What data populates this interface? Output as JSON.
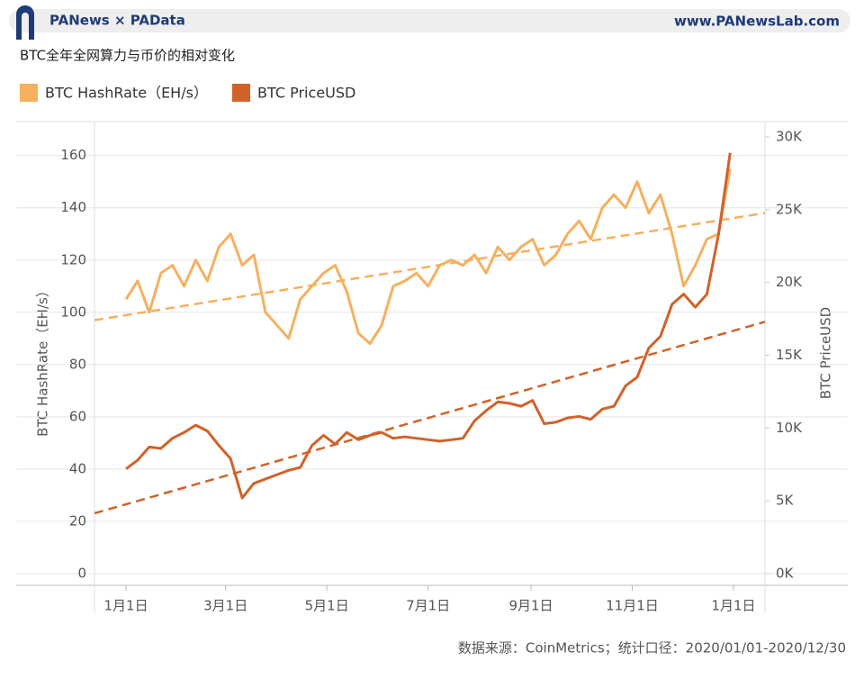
{
  "header": {
    "brand": "PANews × PAData",
    "site": "www.PANewsLab.com"
  },
  "chart_data": {
    "type": "dual-line",
    "title": "BTC全年全网算力与币价的相对变化",
    "y_label": "BTC HashRate（EH/s）",
    "y2_label": "BTC PriceUSD",
    "source": "数据来源：CoinMetrics；统计口径：2020/01/01-2020/12/30",
    "xlim": [
      -19,
      385
    ],
    "xticks": [
      {
        "value": 0,
        "label": "1月1日"
      },
      {
        "value": 60,
        "label": "3月1日"
      },
      {
        "value": 121,
        "label": "5月1日"
      },
      {
        "value": 182,
        "label": "7月1日"
      },
      {
        "value": 244,
        "label": "9月1日"
      },
      {
        "value": 305,
        "label": "11月1日"
      },
      {
        "value": 366,
        "label": "1月1日"
      }
    ],
    "ylim": [
      -4.5,
      173
    ],
    "yticks": [
      0,
      20,
      40,
      60,
      80,
      100,
      120,
      140,
      160
    ],
    "y2lim": [
      -800,
      31050
    ],
    "y2ticks": [
      {
        "value": 0,
        "label": "0K"
      },
      {
        "value": 5000,
        "label": "5K"
      },
      {
        "value": 10000,
        "label": "10K"
      },
      {
        "value": 15000,
        "label": "15K"
      },
      {
        "value": 20000,
        "label": "20K"
      },
      {
        "value": 25000,
        "label": "25K"
      },
      {
        "value": 30000,
        "label": "30K"
      }
    ],
    "grid": true,
    "legend": "top-left",
    "x": [
      0,
      7,
      14,
      21,
      28,
      35,
      42,
      49,
      56,
      63,
      70,
      77,
      84,
      91,
      98,
      105,
      112,
      119,
      126,
      133,
      140,
      147,
      154,
      161,
      168,
      175,
      182,
      189,
      196,
      203,
      210,
      217,
      224,
      231,
      238,
      245,
      252,
      259,
      266,
      273,
      280,
      287,
      294,
      301,
      308,
      315,
      322,
      329,
      336,
      343,
      350,
      357,
      364
    ],
    "series": [
      {
        "name": "BTC HashRate（EH/s）",
        "color": "#f5b060",
        "axis": "y",
        "values": [
          105,
          112,
          100,
          115,
          118,
          110,
          120,
          112,
          125,
          130,
          118,
          122,
          100,
          95,
          90,
          105,
          110,
          115,
          118,
          108,
          92,
          88,
          95,
          110,
          112,
          115,
          110,
          118,
          120,
          118,
          122,
          115,
          125,
          120,
          125,
          128,
          118,
          122,
          130,
          135,
          128,
          140,
          145,
          140,
          150,
          138,
          145,
          130,
          110,
          118,
          128,
          130,
          155
        ],
        "trend": {
          "x": [
            -19,
            385
          ],
          "values": [
            97,
            138
          ]
        }
      },
      {
        "name": "BTC PriceUSD",
        "color": "#d0622a",
        "axis": "y2",
        "values": [
          7200,
          7800,
          8700,
          8600,
          9300,
          9700,
          10200,
          9800,
          8800,
          7900,
          5200,
          6200,
          6500,
          6800,
          7100,
          7300,
          8800,
          9500,
          8900,
          9700,
          9200,
          9500,
          9700,
          9300,
          9400,
          9300,
          9200,
          9100,
          9200,
          9300,
          10500,
          11200,
          11800,
          11700,
          11500,
          11900,
          10300,
          10400,
          10700,
          10800,
          10600,
          11300,
          11500,
          12900,
          13500,
          15500,
          16300,
          18500,
          19200,
          18300,
          19200,
          23300,
          28900
        ],
        "trend": {
          "x": [
            -19,
            385
          ],
          "values": [
            4150,
            17300
          ]
        }
      }
    ]
  }
}
